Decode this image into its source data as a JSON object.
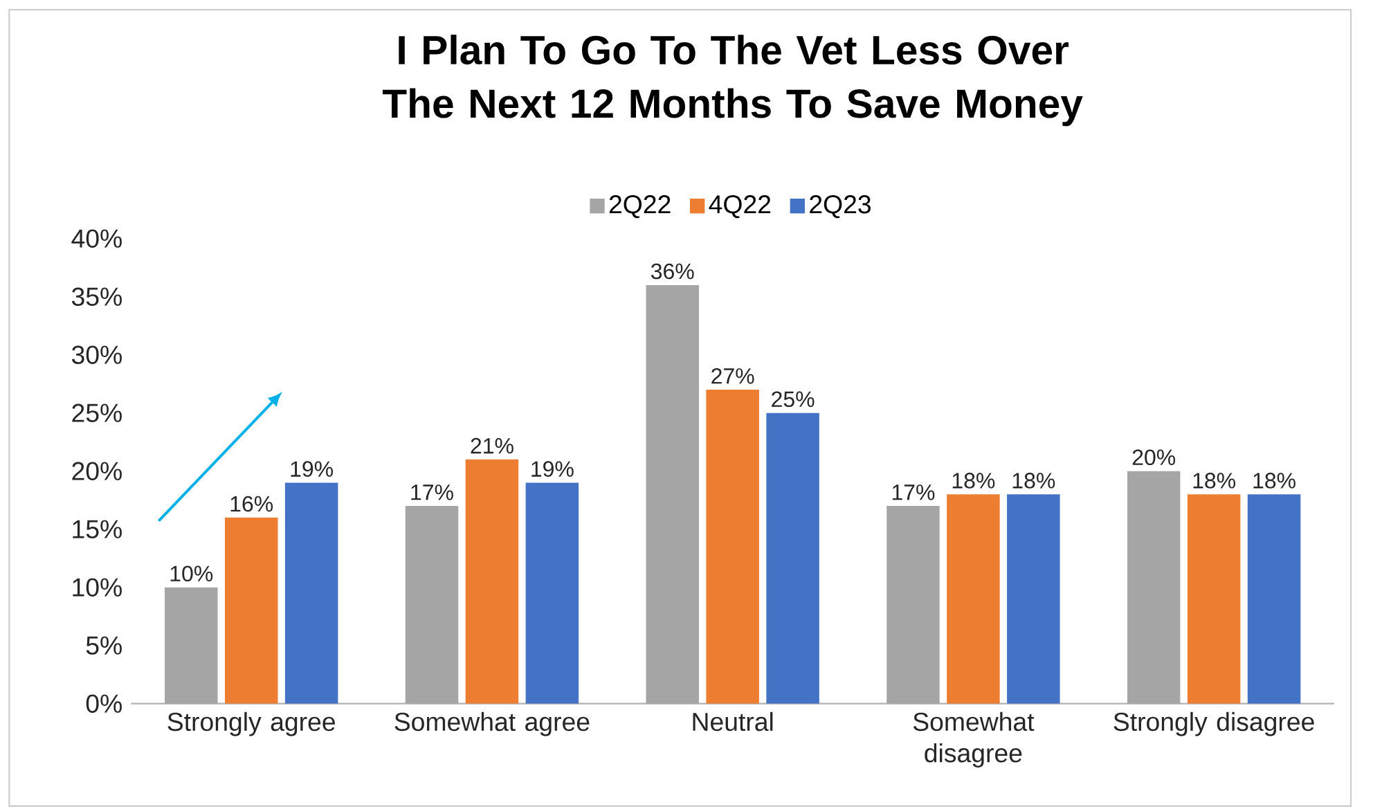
{
  "chart_data": {
    "type": "bar",
    "title": "I Plan To Go To The Vet Less Over The Next 12 Months To Save Money",
    "categories": [
      "Strongly agree",
      "Somewhat agree",
      "Neutral",
      "Somewhat disagree",
      "Strongly disagree"
    ],
    "series": [
      {
        "name": "2Q22",
        "color": "#a5a5a5",
        "values": [
          10,
          17,
          36,
          17,
          20
        ],
        "value_labels": [
          "10%",
          "17%",
          "36%",
          "17%",
          "20%"
        ]
      },
      {
        "name": "4Q22",
        "color": "#ed7d31",
        "values": [
          16,
          21,
          27,
          18,
          18
        ],
        "value_labels": [
          "16%",
          "21%",
          "27%",
          "18%",
          "18%"
        ]
      },
      {
        "name": "2Q23",
        "color": "#4472c4",
        "values": [
          19,
          19,
          25,
          18,
          18
        ],
        "value_labels": [
          "19%",
          "19%",
          "25%",
          "18%",
          "18%"
        ]
      }
    ],
    "ylim": [
      0,
      40
    ],
    "yticks": [
      {
        "value": 0,
        "label": "0%"
      },
      {
        "value": 5,
        "label": "5%"
      },
      {
        "value": 10,
        "label": "10%"
      },
      {
        "value": 15,
        "label": "15%"
      },
      {
        "value": 20,
        "label": "20%"
      },
      {
        "value": 25,
        "label": "25%"
      },
      {
        "value": 30,
        "label": "30%"
      },
      {
        "value": 35,
        "label": "35%"
      },
      {
        "value": 40,
        "label": "40%"
      }
    ],
    "legend": "top",
    "grid": false
  }
}
